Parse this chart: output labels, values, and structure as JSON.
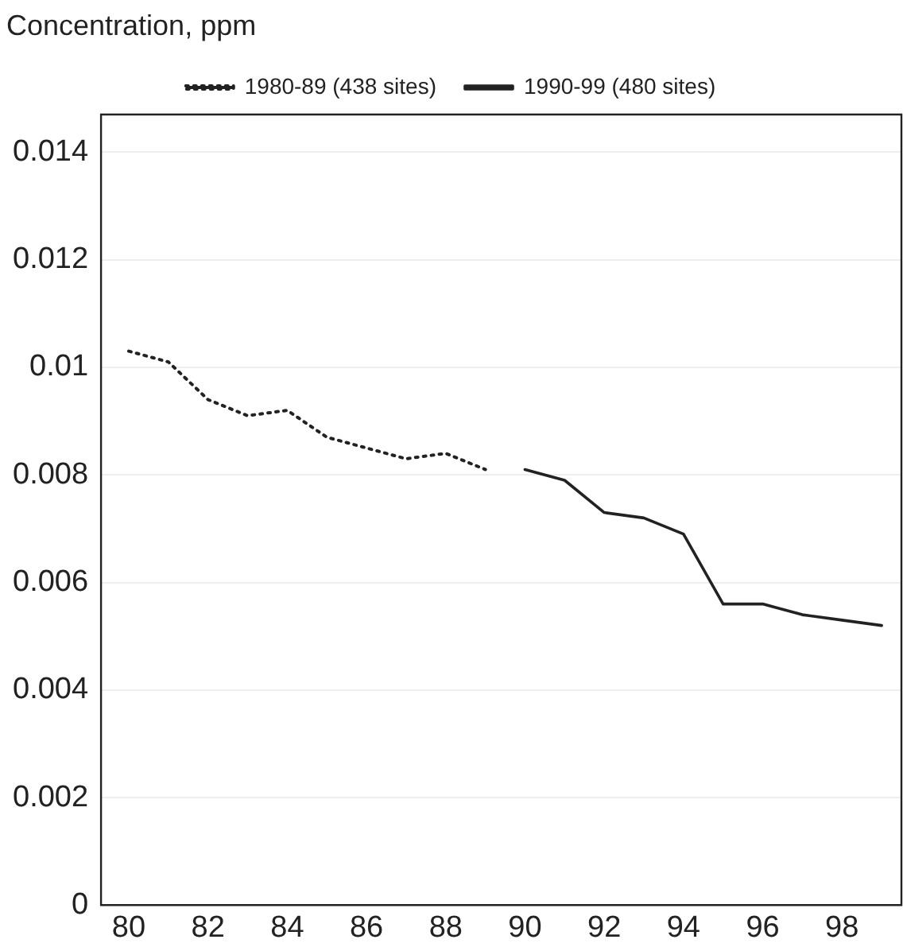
{
  "chart_data": {
    "type": "line",
    "ylabel": "Concentration, ppm",
    "xlim": [
      79.3,
      99.5
    ],
    "xticks": [
      80,
      82,
      84,
      86,
      88,
      90,
      92,
      94,
      96,
      98
    ],
    "ylim": [
      0,
      0.0147
    ],
    "yticks": [
      0,
      0.002,
      0.004,
      0.006,
      0.008,
      0.01,
      0.012,
      0.014
    ],
    "grid": "y",
    "legend": "top",
    "marker": "none",
    "series": [
      {
        "name": "1980-89 (438 sites)",
        "color": "#222222",
        "line_style": "dotted",
        "x": [
          80,
          81,
          82,
          83,
          84,
          85,
          86,
          87,
          88,
          89
        ],
        "values": [
          0.0103,
          0.0101,
          0.0094,
          0.0091,
          0.0092,
          0.0087,
          0.0085,
          0.0083,
          0.0084,
          0.0081
        ]
      },
      {
        "name": "1990-99 (480 sites)",
        "color": "#222222",
        "line_style": "solid",
        "x": [
          90,
          91,
          92,
          93,
          94,
          95,
          96,
          97,
          98,
          99
        ],
        "values": [
          0.0081,
          0.0079,
          0.0073,
          0.0072,
          0.0069,
          0.0056,
          0.0056,
          0.0054,
          0.0053,
          0.0052
        ]
      }
    ]
  }
}
